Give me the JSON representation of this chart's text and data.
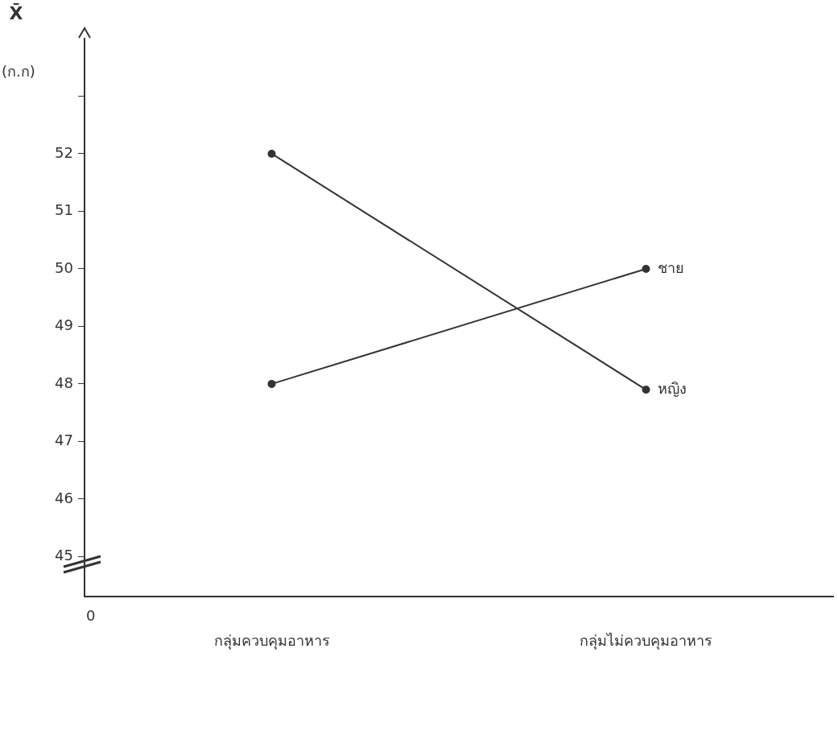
{
  "chart_data": {
    "type": "line",
    "ylabel": "X̄",
    "annotations": [
      "(ก.ก)",
      "0"
    ],
    "categories": [
      "กลุ่มควบคุมอาหาร",
      "กลุ่มไม่ควบคุมอาหาร"
    ],
    "series": [
      {
        "name": "ชาย",
        "color": "#333333",
        "values": [
          48,
          50
        ]
      },
      {
        "name": "หญิง",
        "color": "#333333",
        "values": [
          52,
          47.9
        ]
      }
    ],
    "ylim": [
      44.3,
      54
    ],
    "yticks": [
      45,
      46,
      47,
      48,
      49,
      50,
      51,
      52,
      {
        "value": 53,
        "label": null
      }
    ],
    "grid": false,
    "legend": false,
    "marker": "circle",
    "line_style": "solid"
  }
}
